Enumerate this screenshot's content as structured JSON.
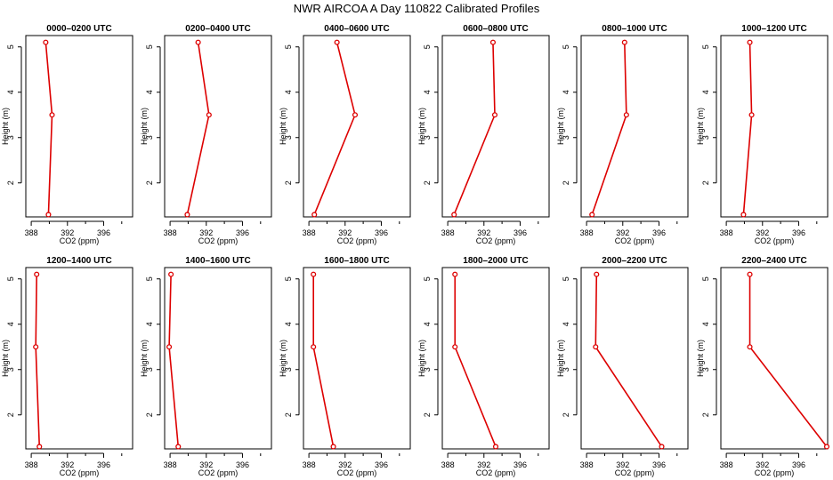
{
  "chart_data": {
    "type": "line",
    "title": "NWR AIRCOA A  Day 110822  Calibrated Profiles",
    "xlabel": "CO2 (ppm)",
    "ylabel": "Height (m)",
    "xlim": [
      387.4,
      399.2
    ],
    "ylim": [
      1.25,
      5.25
    ],
    "x_ticks": [
      388,
      392,
      396
    ],
    "y_ticks": [
      2,
      3,
      4,
      5
    ],
    "heights": [
      5.1,
      3.5,
      1.3
    ],
    "line_color": "#dd0000",
    "panels": [
      {
        "title": "0000–0200 UTC",
        "co2": [
          389.6,
          390.3,
          389.9
        ]
      },
      {
        "title": "0200–0400 UTC",
        "co2": [
          391.1,
          392.3,
          389.9
        ]
      },
      {
        "title": "0400–0600 UTC",
        "co2": [
          391.1,
          393.1,
          388.6
        ]
      },
      {
        "title": "0600–0800 UTC",
        "co2": [
          393.0,
          393.2,
          388.7
        ]
      },
      {
        "title": "0800–1000 UTC",
        "co2": [
          392.2,
          392.4,
          388.6
        ]
      },
      {
        "title": "1000–1200 UTC",
        "co2": [
          390.6,
          390.8,
          389.9
        ]
      },
      {
        "title": "1200–1400 UTC",
        "co2": [
          388.6,
          388.5,
          388.9
        ]
      },
      {
        "title": "1400–1600 UTC",
        "co2": [
          388.1,
          387.9,
          388.9
        ]
      },
      {
        "title": "1600–1800 UTC",
        "co2": [
          388.5,
          388.5,
          390.7
        ]
      },
      {
        "title": "1800–2000 UTC",
        "co2": [
          388.8,
          388.8,
          393.3
        ]
      },
      {
        "title": "2000–2200 UTC",
        "co2": [
          389.1,
          389.0,
          396.3
        ]
      },
      {
        "title": "2200–2400 UTC",
        "co2": [
          390.6,
          390.6,
          399.1
        ]
      }
    ]
  }
}
